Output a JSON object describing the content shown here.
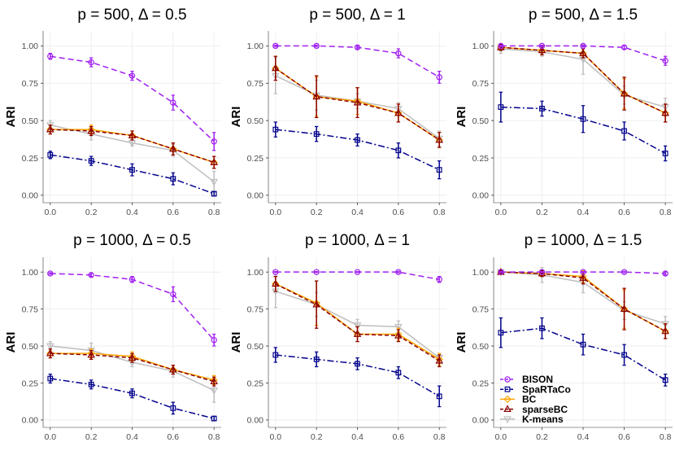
{
  "chart_data": {
    "type": "line",
    "x_ticks": [
      0.0,
      0.2,
      0.4,
      0.6,
      0.8
    ],
    "x_tick_labels": [
      "0.0",
      "0.2",
      "0.4",
      "0.6",
      "0.8"
    ],
    "y_ticks": [
      0.0,
      0.25,
      0.5,
      0.75,
      1.0
    ],
    "y_tick_labels": [
      "0.00",
      "0.25",
      "0.50",
      "0.75",
      "1.00"
    ],
    "xlim": [
      -0.035,
      0.835
    ],
    "ylim": [
      -0.05,
      1.1
    ],
    "ylabel": "ARI",
    "legend": [
      {
        "name": "BISON",
        "color": "#a020f0",
        "marker": "circle",
        "dash": "7,4"
      },
      {
        "name": "SpaRTaCo",
        "color": "#00008b",
        "marker": "square",
        "dash": "8,3,2,3"
      },
      {
        "name": "BC",
        "color": "#ffa500",
        "marker": "diamond",
        "dash": ""
      },
      {
        "name": "sparseBC",
        "color": "#8b0000",
        "marker": "triangle-up",
        "dash": "5,3"
      },
      {
        "name": "K-means",
        "color": "#bebebe",
        "marker": "triangle-down",
        "dash": ""
      }
    ],
    "panels": [
      {
        "title": "p = 500, Δ = 0.5",
        "series": [
          {
            "name": "BISON",
            "values": [
              0.93,
              0.89,
              0.8,
              0.62,
              0.36
            ],
            "errors": [
              0.02,
              0.03,
              0.03,
              0.05,
              0.06
            ]
          },
          {
            "name": "SpaRTaCo",
            "values": [
              0.27,
              0.23,
              0.17,
              0.11,
              0.01
            ],
            "errors": [
              0.025,
              0.03,
              0.04,
              0.04,
              0.015
            ]
          },
          {
            "name": "BC",
            "values": [
              0.44,
              0.44,
              0.4,
              0.31,
              0.22
            ],
            "errors": [
              0.03,
              0.03,
              0.03,
              0.04,
              0.04
            ]
          },
          {
            "name": "sparseBC",
            "values": [
              0.44,
              0.43,
              0.4,
              0.31,
              0.22
            ],
            "errors": [
              0.03,
              0.03,
              0.03,
              0.04,
              0.04
            ]
          },
          {
            "name": "K-means",
            "values": [
              0.47,
              0.41,
              0.35,
              0.3,
              0.09
            ],
            "errors": [
              0.03,
              0.04,
              0.02,
              0.04,
              0.07
            ]
          }
        ]
      },
      {
        "title": "p = 500, Δ = 1",
        "series": [
          {
            "name": "BISON",
            "values": [
              1.0,
              1.0,
              0.99,
              0.95,
              0.79
            ],
            "errors": [
              0.005,
              0.005,
              0.01,
              0.03,
              0.04
            ]
          },
          {
            "name": "SpaRTaCo",
            "values": [
              0.44,
              0.41,
              0.37,
              0.3,
              0.17
            ],
            "errors": [
              0.05,
              0.05,
              0.04,
              0.05,
              0.06
            ]
          },
          {
            "name": "BC",
            "values": [
              0.85,
              0.66,
              0.63,
              0.55,
              0.37
            ],
            "errors": [
              0.08,
              0.13,
              0.09,
              0.06,
              0.05
            ]
          },
          {
            "name": "sparseBC",
            "values": [
              0.85,
              0.66,
              0.62,
              0.55,
              0.37
            ],
            "errors": [
              0.08,
              0.14,
              0.1,
              0.06,
              0.05
            ]
          },
          {
            "name": "K-means",
            "values": [
              0.8,
              0.67,
              0.63,
              0.58,
              0.38
            ],
            "errors": [
              0.12,
              0.1,
              0.05,
              0.04,
              0.05
            ]
          }
        ]
      },
      {
        "title": "p = 500, Δ = 1.5",
        "series": [
          {
            "name": "BISON",
            "values": [
              1.0,
              1.0,
              1.0,
              0.99,
              0.9
            ],
            "errors": [
              0.005,
              0.005,
              0.005,
              0.01,
              0.03
            ]
          },
          {
            "name": "SpaRTaCo",
            "values": [
              0.59,
              0.58,
              0.51,
              0.43,
              0.28
            ],
            "errors": [
              0.1,
              0.05,
              0.09,
              0.06,
              0.05
            ]
          },
          {
            "name": "BC",
            "values": [
              0.99,
              0.97,
              0.95,
              0.68,
              0.55
            ],
            "errors": [
              0.02,
              0.03,
              0.03,
              0.1,
              0.06
            ]
          },
          {
            "name": "sparseBC",
            "values": [
              0.99,
              0.97,
              0.95,
              0.68,
              0.55
            ],
            "errors": [
              0.02,
              0.03,
              0.03,
              0.11,
              0.06
            ]
          },
          {
            "name": "K-means",
            "values": [
              0.98,
              0.96,
              0.91,
              0.67,
              0.59
            ],
            "errors": [
              0.03,
              0.03,
              0.1,
              0.06,
              0.06
            ]
          }
        ]
      },
      {
        "title": "p = 1000, Δ = 0.5",
        "series": [
          {
            "name": "BISON",
            "values": [
              0.99,
              0.98,
              0.95,
              0.85,
              0.54
            ],
            "errors": [
              0.005,
              0.01,
              0.02,
              0.05,
              0.04
            ]
          },
          {
            "name": "SpaRTaCo",
            "values": [
              0.28,
              0.24,
              0.18,
              0.08,
              0.01
            ],
            "errors": [
              0.03,
              0.03,
              0.03,
              0.04,
              0.015
            ]
          },
          {
            "name": "BC",
            "values": [
              0.45,
              0.45,
              0.43,
              0.34,
              0.27
            ],
            "errors": [
              0.03,
              0.03,
              0.03,
              0.03,
              0.03
            ]
          },
          {
            "name": "sparseBC",
            "values": [
              0.45,
              0.44,
              0.42,
              0.34,
              0.26
            ],
            "errors": [
              0.03,
              0.03,
              0.03,
              0.03,
              0.03
            ]
          },
          {
            "name": "K-means",
            "values": [
              0.5,
              0.47,
              0.39,
              0.33,
              0.2
            ],
            "errors": [
              0.03,
              0.05,
              0.03,
              0.04,
              0.08
            ]
          }
        ]
      },
      {
        "title": "p = 1000, Δ = 1",
        "series": [
          {
            "name": "BISON",
            "values": [
              1.0,
              1.0,
              1.0,
              1.0,
              0.95
            ],
            "errors": [
              0.003,
              0.003,
              0.003,
              0.005,
              0.02
            ]
          },
          {
            "name": "SpaRTaCo",
            "values": [
              0.44,
              0.41,
              0.38,
              0.32,
              0.16
            ],
            "errors": [
              0.05,
              0.05,
              0.04,
              0.04,
              0.07
            ]
          },
          {
            "name": "BC",
            "values": [
              0.92,
              0.79,
              0.58,
              0.58,
              0.41
            ],
            "errors": [
              0.05,
              0.15,
              0.05,
              0.04,
              0.04
            ]
          },
          {
            "name": "sparseBC",
            "values": [
              0.92,
              0.78,
              0.58,
              0.57,
              0.4
            ],
            "errors": [
              0.05,
              0.16,
              0.05,
              0.04,
              0.04
            ]
          },
          {
            "name": "K-means",
            "values": [
              0.87,
              0.78,
              0.64,
              0.63,
              0.42
            ],
            "errors": [
              0.11,
              0.08,
              0.04,
              0.04,
              0.03
            ]
          }
        ]
      },
      {
        "title": "p = 1000, Δ = 1.5",
        "series": [
          {
            "name": "BISON",
            "values": [
              1.0,
              1.0,
              1.0,
              1.0,
              0.99
            ],
            "errors": [
              0.003,
              0.003,
              0.003,
              0.005,
              0.01
            ]
          },
          {
            "name": "SpaRTaCo",
            "values": [
              0.59,
              0.62,
              0.51,
              0.44,
              0.27
            ],
            "errors": [
              0.1,
              0.07,
              0.07,
              0.07,
              0.04
            ]
          },
          {
            "name": "BC",
            "values": [
              1.0,
              0.99,
              0.97,
              0.75,
              0.6
            ],
            "errors": [
              0.01,
              0.02,
              0.04,
              0.13,
              0.05
            ]
          },
          {
            "name": "sparseBC",
            "values": [
              1.0,
              0.99,
              0.96,
              0.75,
              0.6
            ],
            "errors": [
              0.01,
              0.02,
              0.04,
              0.14,
              0.05
            ]
          },
          {
            "name": "K-means",
            "values": [
              1.0,
              0.98,
              0.93,
              0.74,
              0.65
            ],
            "errors": [
              0.01,
              0.05,
              0.07,
              0.06,
              0.05
            ]
          }
        ]
      }
    ]
  }
}
